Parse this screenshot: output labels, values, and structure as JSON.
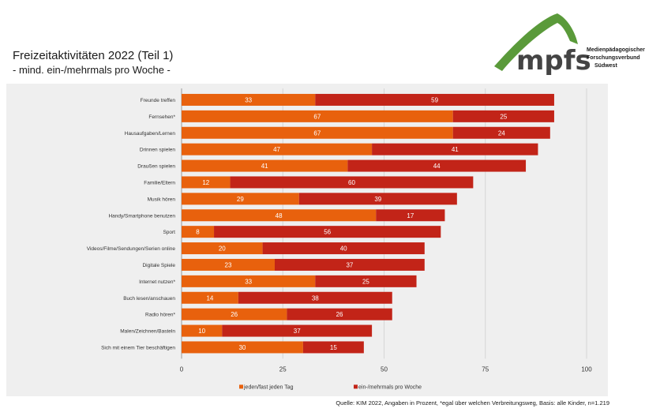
{
  "header": {
    "title": "Freizeitaktivitäten 2022 (Teil 1)",
    "subtitle": "- mind. ein-/mehrmals pro Woche -"
  },
  "logo": {
    "wordmark": "mpfs",
    "line1": "Medienpädagogischer",
    "line2": "Forschungsverbund",
    "line3": "Südwest",
    "color": "#5a9a3a"
  },
  "footer": {
    "source": "Quelle: KIM 2022, Angaben in Prozent, *egal über welchen Verbreitungsweg, Basis: alle Kinder, n=1.219"
  },
  "chart_data": {
    "type": "bar",
    "orientation": "horizontal",
    "stacked": true,
    "categories": [
      "Freunde treffen",
      "Fernsehen*",
      "Hausaufgaben/Lernen",
      "Drinnen spielen",
      "Draußen spielen",
      "Familie/Eltern",
      "Musik hören",
      "Handy/Smartphone benutzen",
      "Sport",
      "Videos/Filme/Sendungen/Serien online",
      "Digitale Spiele",
      "Internet nutzen*",
      "Buch lesen/anschauen",
      "Radio hören*",
      "Malen/Zeichnen/Basteln",
      "Sich mit einem Tier beschäftigen"
    ],
    "series": [
      {
        "name": "jeden/fast jeden Tag",
        "color": "#e8610d",
        "values": [
          33,
          67,
          67,
          47,
          41,
          12,
          29,
          48,
          8,
          20,
          23,
          33,
          14,
          26,
          10,
          30
        ]
      },
      {
        "name": "ein-/mehrmals pro Woche",
        "color": "#c22418",
        "values": [
          59,
          25,
          24,
          41,
          44,
          60,
          39,
          17,
          56,
          40,
          37,
          25,
          38,
          26,
          37,
          15
        ]
      }
    ],
    "xlim": [
      0,
      100
    ],
    "xticks": [
      "0",
      "25",
      "50",
      "75",
      "100"
    ],
    "grid": true,
    "legend_position": "bottom"
  }
}
